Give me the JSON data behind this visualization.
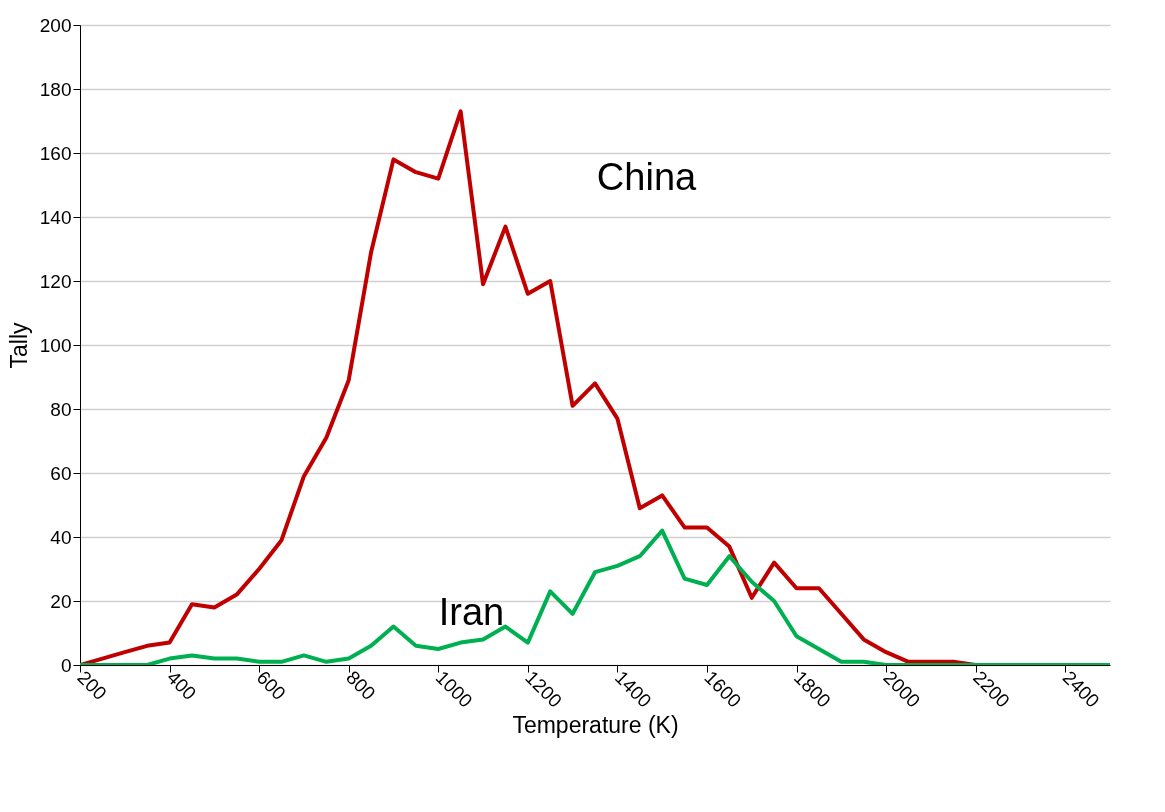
{
  "chart_data": {
    "type": "line",
    "xlabel": "Temperature (K)",
    "ylabel": "Tally",
    "x": [
      200,
      250,
      300,
      350,
      400,
      450,
      500,
      550,
      600,
      650,
      700,
      750,
      800,
      850,
      900,
      950,
      1000,
      1050,
      1100,
      1150,
      1200,
      1250,
      1300,
      1350,
      1400,
      1450,
      1500,
      1550,
      1600,
      1650,
      1700,
      1750,
      1800,
      1850,
      1900,
      1950,
      2000,
      2050,
      2100,
      2150,
      2200,
      2250,
      2300,
      2350,
      2400,
      2450,
      2500
    ],
    "series": [
      {
        "name": "China",
        "color": "#c00000",
        "values": [
          0,
          2,
          4,
          6,
          7,
          19,
          18,
          22,
          30,
          39,
          59,
          71,
          89,
          129,
          158,
          154,
          152,
          173,
          119,
          137,
          116,
          120,
          81,
          88,
          77,
          49,
          53,
          43,
          43,
          37,
          21,
          32,
          24,
          24,
          16,
          8,
          4,
          1,
          1,
          1,
          0,
          0,
          null,
          null,
          null,
          null,
          null
        ]
      },
      {
        "name": "Iran",
        "color": "#00b050",
        "values": [
          0,
          0,
          0,
          0,
          2,
          3,
          2,
          2,
          1,
          1,
          3,
          1,
          2,
          6,
          12,
          6,
          5,
          7,
          8,
          12,
          7,
          23,
          16,
          29,
          31,
          34,
          42,
          27,
          25,
          34,
          26,
          20,
          9,
          5,
          1,
          1,
          0,
          0,
          0,
          0,
          0,
          0,
          0,
          0,
          0,
          0,
          0
        ]
      }
    ],
    "xlim": [
      200,
      2500
    ],
    "xticks": [
      200,
      400,
      600,
      800,
      1000,
      1200,
      1400,
      1600,
      1800,
      2000,
      2200,
      2400
    ],
    "ylim": [
      0,
      200
    ],
    "yticks": [
      0,
      20,
      40,
      60,
      80,
      100,
      120,
      140,
      160,
      180,
      200
    ],
    "grid": "y",
    "legend": false,
    "marker": "none",
    "line_style": "solid"
  }
}
